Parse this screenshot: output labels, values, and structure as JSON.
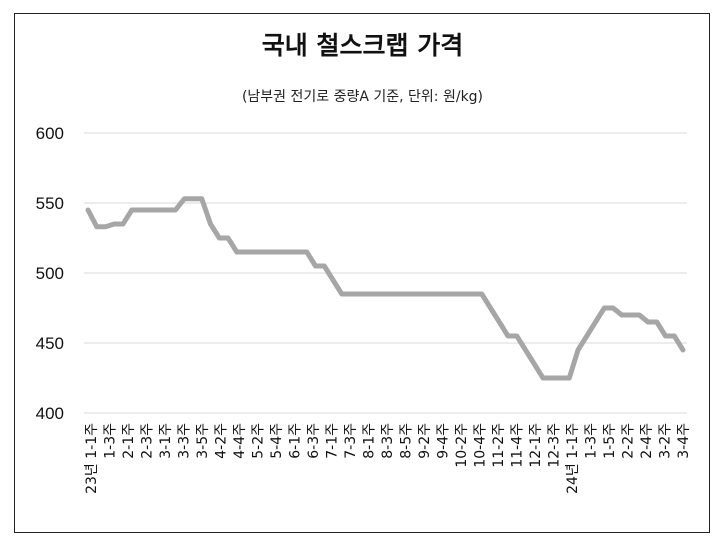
{
  "chart_data": {
    "type": "line",
    "title": "국내 철스크랩 가격",
    "subtitle": "(남부권 전기로 중량A 기준, 단위: 원/kg)",
    "ylim": [
      400,
      600
    ],
    "yticks": [
      "400",
      "450",
      "500",
      "550",
      "600"
    ],
    "grid": "horizontal",
    "line_color": "#a6a6a6",
    "x_tick_labels": [
      "23년 1-1주",
      "1-3주",
      "2-1주",
      "2-3주",
      "3-1주",
      "3-3주",
      "3-5주",
      "4-2주",
      "4-4주",
      "5-2주",
      "5-4주",
      "6-1주",
      "6-3주",
      "7-1주",
      "7-3주",
      "8-1주",
      "8-3주",
      "8-5주",
      "9-2주",
      "9-4주",
      "10-2주",
      "10-4주",
      "11-2주",
      "11-4주",
      "12-1주",
      "12-3주",
      "24년 1-1주",
      "1-3주",
      "1-5주",
      "2-2주",
      "2-4주",
      "3-2주",
      "3-4주"
    ],
    "series": [
      {
        "values": [
          545,
          533,
          533,
          535,
          535,
          545,
          545,
          545,
          545,
          545,
          545,
          553,
          553,
          553,
          535,
          525,
          525,
          515,
          515,
          515,
          515,
          515,
          515,
          515,
          515,
          515,
          505,
          505,
          495,
          485,
          485,
          485,
          485,
          485,
          485,
          485,
          485,
          485,
          485,
          485,
          485,
          485,
          485,
          485,
          485,
          485,
          475,
          465,
          455,
          455,
          445,
          435,
          425,
          425,
          425,
          425,
          445,
          455,
          465,
          475,
          475,
          470,
          470,
          470,
          465,
          465,
          455,
          455,
          445
        ]
      }
    ]
  }
}
